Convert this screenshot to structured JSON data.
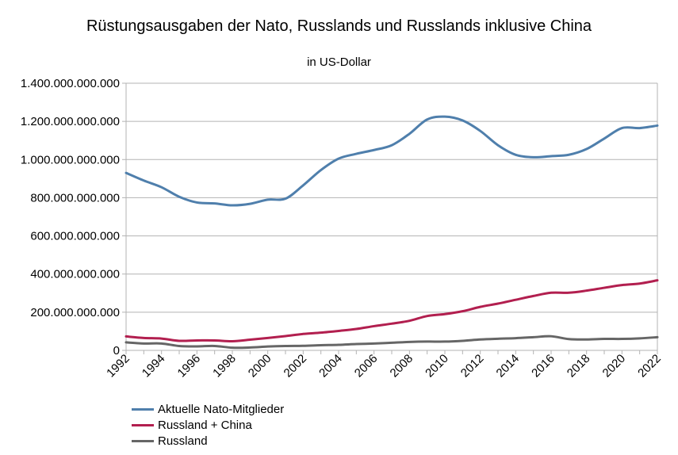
{
  "chart_data": {
    "type": "line",
    "title": "Rüstungsausgaben der Nato, Russlands und Russlands inklusive China",
    "subtitle": "in US-Dollar",
    "xlabel": "",
    "ylabel": "",
    "ylim": [
      0,
      1400000000000
    ],
    "xlim": [
      1992,
      2022
    ],
    "grid": true,
    "legend_position": "bottom-left",
    "y_ticks": [
      0,
      200000000000,
      400000000000,
      600000000000,
      800000000000,
      1000000000000,
      1200000000000,
      1400000000000
    ],
    "y_tick_labels": [
      "0",
      "200.000.000.000",
      "400.000.000.000",
      "600.000.000.000",
      "800.000.000.000",
      "1.000.000.000.000",
      "1.200.000.000.000",
      "1.400.000.000.000"
    ],
    "x_tick_labels": [
      "1992",
      "1994",
      "1996",
      "1998",
      "2000",
      "2002",
      "2004",
      "2006",
      "2008",
      "2010",
      "2012",
      "2014",
      "2016",
      "2018",
      "2020",
      "2022"
    ],
    "x": [
      1992,
      1993,
      1994,
      1995,
      1996,
      1997,
      1998,
      1999,
      2000,
      2001,
      2002,
      2003,
      2004,
      2005,
      2006,
      2007,
      2008,
      2009,
      2010,
      2011,
      2012,
      2013,
      2014,
      2015,
      2016,
      2017,
      2018,
      2019,
      2020,
      2021,
      2022
    ],
    "series": [
      {
        "name": "Aktuelle Nato-Mitglieder",
        "color": "#4f7fac",
        "values": [
          930000000000,
          890000000000,
          855000000000,
          805000000000,
          775000000000,
          770000000000,
          760000000000,
          768000000000,
          790000000000,
          795000000000,
          865000000000,
          945000000000,
          1005000000000,
          1030000000000,
          1050000000000,
          1075000000000,
          1135000000000,
          1210000000000,
          1225000000000,
          1205000000000,
          1150000000000,
          1075000000000,
          1025000000000,
          1012000000000,
          1018000000000,
          1025000000000,
          1055000000000,
          1110000000000,
          1165000000000,
          1165000000000,
          1178000000000
        ]
      },
      {
        "name": "Russland + China",
        "color": "#b21f4f",
        "values": [
          73000000000,
          65000000000,
          62000000000,
          50000000000,
          52000000000,
          52000000000,
          48000000000,
          56000000000,
          65000000000,
          75000000000,
          86000000000,
          93000000000,
          102000000000,
          112000000000,
          127000000000,
          140000000000,
          155000000000,
          180000000000,
          190000000000,
          205000000000,
          228000000000,
          245000000000,
          265000000000,
          285000000000,
          302000000000,
          302000000000,
          313000000000,
          328000000000,
          342000000000,
          350000000000,
          367000000000
        ]
      },
      {
        "name": "Russland",
        "color": "#666666",
        "values": [
          42000000000,
          36000000000,
          36000000000,
          23000000000,
          21000000000,
          23000000000,
          14000000000,
          15000000000,
          20000000000,
          23000000000,
          24000000000,
          27000000000,
          29000000000,
          33000000000,
          36000000000,
          40000000000,
          44000000000,
          46000000000,
          46000000000,
          50000000000,
          57000000000,
          61000000000,
          64000000000,
          69000000000,
          74000000000,
          59000000000,
          57000000000,
          60000000000,
          60000000000,
          63000000000,
          69000000000
        ]
      }
    ]
  }
}
